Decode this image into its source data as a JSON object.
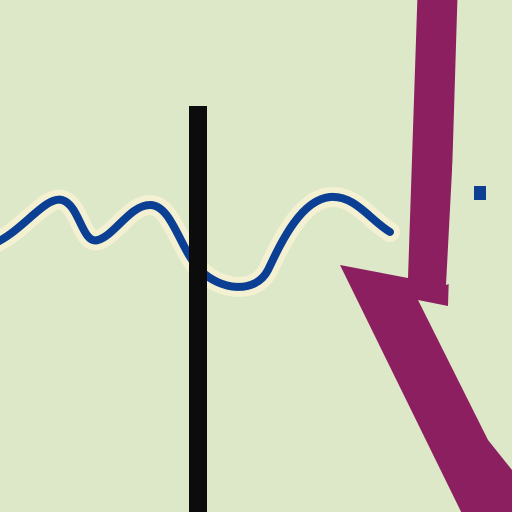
{
  "colors": {
    "background": "#dde8c9",
    "wave": "#0a3f94",
    "wave_halo": "#f4f1d2",
    "marker_line": "#0c0c0c",
    "arrow_outline": "#8c1f60",
    "arrow_fill": "#dde8c9",
    "dot": "#0a3f94"
  },
  "icons": {
    "wave": "sine-wave-icon",
    "marker": "vertical-marker-line",
    "arrow": "down-arrow-icon"
  }
}
